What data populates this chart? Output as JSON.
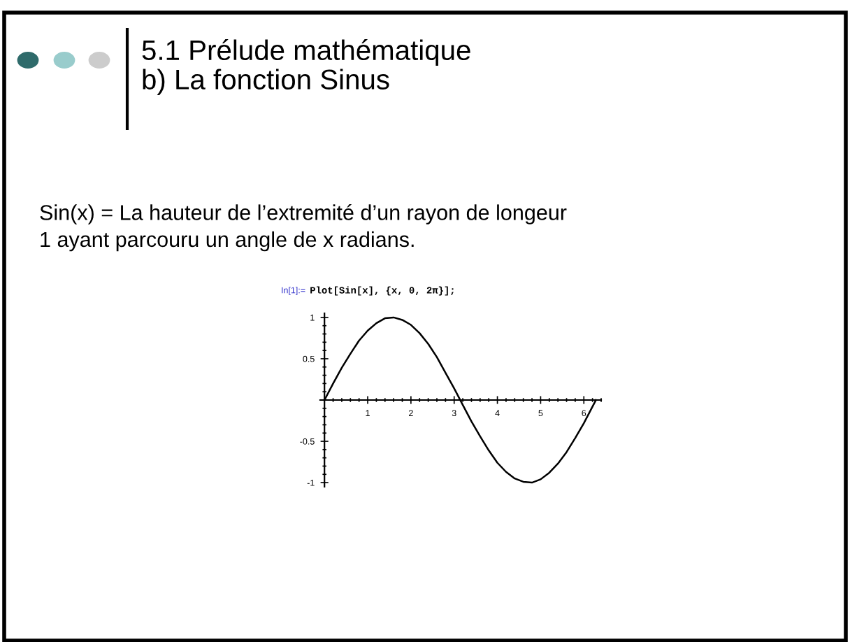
{
  "chart_data": {
    "type": "line",
    "title": "5.1 Prélude mathématique\nb) La fonction Sinus",
    "subtitle": "Sin(x) = La hauteur de l’extremité d’un rayon de longeur\n1 ayant parcouru un angle de x radians.",
    "annotations": [
      "In[1]:=",
      "Plot[Sin[x], {x, 0, 2π}];"
    ],
    "x": [
      0,
      0.2,
      0.4,
      0.6,
      0.8,
      1.0,
      1.2,
      1.4,
      1.6,
      1.8,
      2.0,
      2.2,
      2.4,
      2.6,
      2.8,
      3.0,
      3.2,
      3.4,
      3.6,
      3.8,
      4.0,
      4.2,
      4.4,
      4.6,
      4.8,
      5.0,
      5.2,
      5.4,
      5.6,
      5.8,
      6.0,
      6.2,
      6.28
    ],
    "series": [
      {
        "color": "#000000",
        "values": [
          0,
          0.2,
          0.39,
          0.56,
          0.72,
          0.84,
          0.93,
          0.99,
          1.0,
          0.97,
          0.91,
          0.81,
          0.68,
          0.52,
          0.33,
          0.14,
          -0.06,
          -0.26,
          -0.44,
          -0.61,
          -0.76,
          -0.87,
          -0.95,
          -0.99,
          -1.0,
          -0.96,
          -0.88,
          -0.77,
          -0.63,
          -0.46,
          -0.28,
          -0.08,
          0
        ]
      }
    ],
    "xlim": [
      -0.1,
      6.4
    ],
    "ylim": [
      -1.05,
      1.05
    ],
    "xticks": [
      1,
      2,
      3,
      4,
      5,
      6
    ],
    "yticks": [
      -1,
      -0.5,
      0.5,
      1
    ],
    "grid": false,
    "legend": false,
    "marker": "none",
    "line_style": "solid"
  }
}
